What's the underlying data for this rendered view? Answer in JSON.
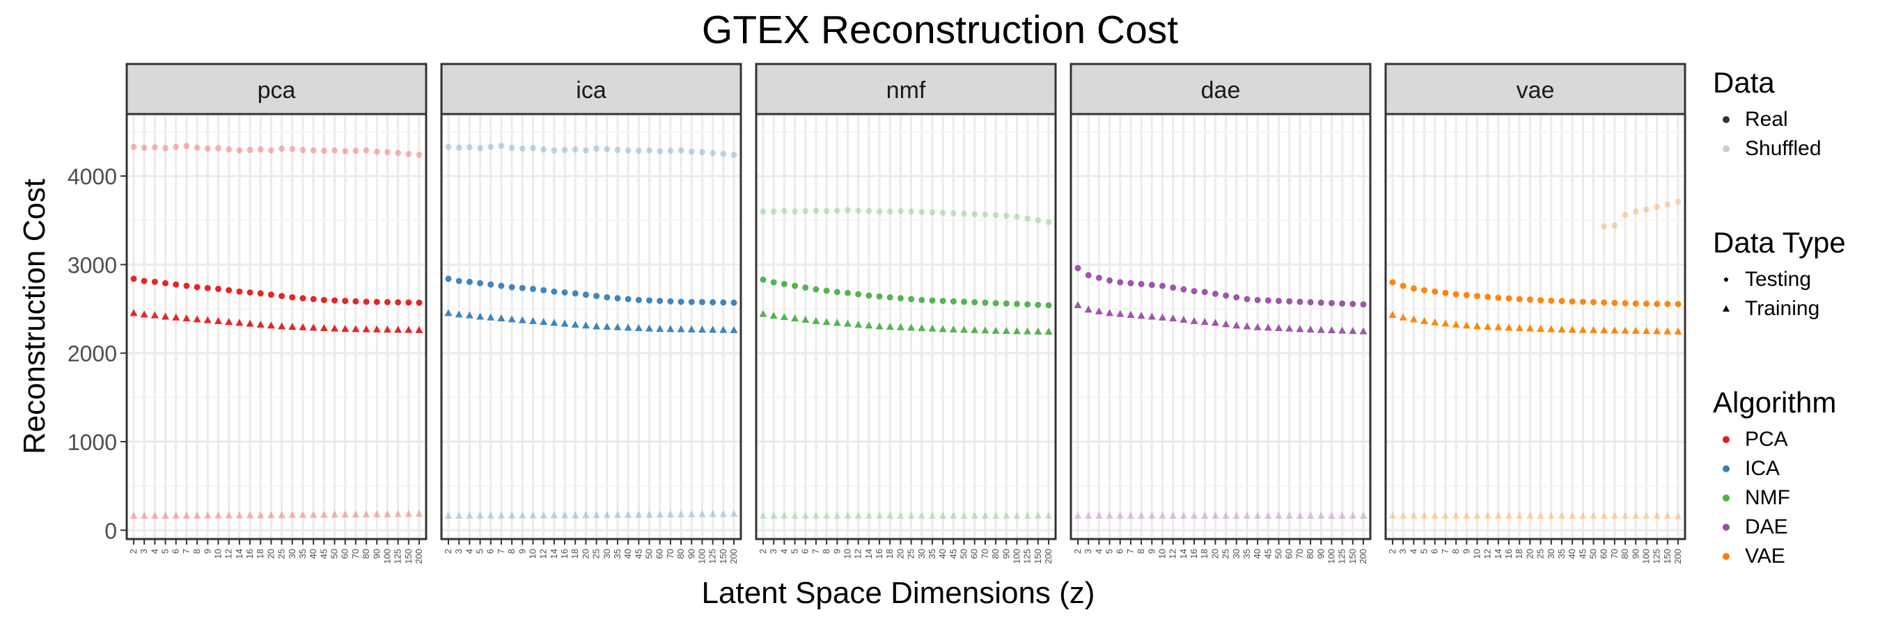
{
  "chart_data": {
    "type": "scatter",
    "title": "GTEX Reconstruction Cost",
    "xlabel": "Latent Space Dimensions (z)",
    "ylabel": "Reconstruction Cost",
    "ylim": [
      -100,
      4700
    ],
    "y_ticks": [
      0,
      1000,
      2000,
      3000,
      4000
    ],
    "x_categories": [
      "2",
      "3",
      "4",
      "5",
      "6",
      "7",
      "8",
      "9",
      "10",
      "12",
      "14",
      "16",
      "18",
      "20",
      "25",
      "30",
      "35",
      "40",
      "45",
      "50",
      "60",
      "70",
      "80",
      "90",
      "100",
      "125",
      "150",
      "200"
    ],
    "grid": true,
    "facets": [
      "pca",
      "ica",
      "nmf",
      "dae",
      "vae"
    ],
    "legend_position": "right",
    "legend": {
      "data": {
        "title": "Data",
        "items": [
          "Real",
          "Shuffled"
        ]
      },
      "data_type": {
        "title": "Data Type",
        "items": [
          "Testing",
          "Training"
        ]
      },
      "algorithm": {
        "title": "Algorithm",
        "items": [
          {
            "label": "PCA",
            "color": "#e41a1c"
          },
          {
            "label": "ICA",
            "color": "#377eb8"
          },
          {
            "label": "NMF",
            "color": "#4daf4a"
          },
          {
            "label": "DAE",
            "color": "#984ea3"
          },
          {
            "label": "VAE",
            "color": "#ff7f00"
          }
        ]
      }
    },
    "series": [
      {
        "facet": "pca",
        "data": "Real",
        "data_type": "Testing",
        "color": "#e41a1c",
        "values": [
          2840,
          2815,
          2805,
          2790,
          2775,
          2760,
          2745,
          2735,
          2725,
          2710,
          2695,
          2685,
          2675,
          2660,
          2645,
          2630,
          2620,
          2610,
          2600,
          2595,
          2590,
          2585,
          2580,
          2578,
          2576,
          2574,
          2572,
          2570
        ]
      },
      {
        "facet": "pca",
        "data": "Real",
        "data_type": "Training",
        "color": "#e41a1c",
        "values": [
          2450,
          2435,
          2425,
          2410,
          2400,
          2390,
          2380,
          2370,
          2360,
          2350,
          2340,
          2330,
          2320,
          2310,
          2300,
          2295,
          2290,
          2285,
          2280,
          2275,
          2272,
          2270,
          2268,
          2266,
          2264,
          2262,
          2260,
          2258
        ]
      },
      {
        "facet": "pca",
        "data": "Shuffled",
        "data_type": "Testing",
        "color": "#e41a1c",
        "values": [
          4330,
          4320,
          4325,
          4315,
          4330,
          4340,
          4320,
          4310,
          4315,
          4300,
          4290,
          4295,
          4300,
          4290,
          4310,
          4305,
          4295,
          4290,
          4285,
          4290,
          4280,
          4285,
          4290,
          4275,
          4270,
          4260,
          4250,
          4240
        ]
      },
      {
        "facet": "pca",
        "data": "Shuffled",
        "data_type": "Training",
        "color": "#e41a1c",
        "values": [
          160,
          160,
          160,
          161,
          161,
          162,
          162,
          163,
          163,
          164,
          165,
          166,
          166,
          167,
          168,
          169,
          170,
          171,
          172,
          173,
          174,
          175,
          176,
          177,
          178,
          179,
          180,
          182
        ]
      },
      {
        "facet": "ica",
        "data": "Real",
        "data_type": "Testing",
        "color": "#377eb8",
        "values": [
          2840,
          2815,
          2805,
          2790,
          2775,
          2760,
          2745,
          2735,
          2725,
          2710,
          2695,
          2685,
          2675,
          2660,
          2645,
          2630,
          2620,
          2610,
          2600,
          2595,
          2590,
          2585,
          2580,
          2578,
          2576,
          2574,
          2572,
          2570
        ]
      },
      {
        "facet": "ica",
        "data": "Real",
        "data_type": "Training",
        "color": "#377eb8",
        "values": [
          2450,
          2435,
          2425,
          2410,
          2400,
          2390,
          2380,
          2370,
          2360,
          2350,
          2340,
          2330,
          2320,
          2310,
          2300,
          2295,
          2290,
          2285,
          2280,
          2275,
          2272,
          2270,
          2268,
          2266,
          2264,
          2262,
          2260,
          2258
        ]
      },
      {
        "facet": "ica",
        "data": "Shuffled",
        "data_type": "Testing",
        "color": "#377eb8",
        "values": [
          4330,
          4320,
          4325,
          4315,
          4330,
          4340,
          4320,
          4310,
          4315,
          4300,
          4290,
          4295,
          4300,
          4290,
          4310,
          4305,
          4295,
          4290,
          4285,
          4290,
          4280,
          4285,
          4290,
          4275,
          4270,
          4260,
          4250,
          4240
        ]
      },
      {
        "facet": "ica",
        "data": "Shuffled",
        "data_type": "Training",
        "color": "#377eb8",
        "values": [
          160,
          160,
          160,
          161,
          161,
          162,
          162,
          163,
          163,
          164,
          165,
          166,
          166,
          167,
          168,
          169,
          170,
          171,
          172,
          173,
          174,
          175,
          176,
          177,
          178,
          179,
          180,
          182
        ]
      },
      {
        "facet": "nmf",
        "data": "Real",
        "data_type": "Testing",
        "color": "#4daf4a",
        "values": [
          2830,
          2800,
          2780,
          2760,
          2740,
          2720,
          2705,
          2690,
          2680,
          2665,
          2650,
          2640,
          2630,
          2620,
          2610,
          2600,
          2595,
          2590,
          2585,
          2580,
          2575,
          2570,
          2565,
          2560,
          2555,
          2550,
          2545,
          2540
        ]
      },
      {
        "facet": "nmf",
        "data": "Real",
        "data_type": "Training",
        "color": "#4daf4a",
        "values": [
          2440,
          2420,
          2405,
          2390,
          2375,
          2360,
          2350,
          2340,
          2330,
          2320,
          2310,
          2300,
          2295,
          2290,
          2285,
          2280,
          2275,
          2270,
          2266,
          2262,
          2258,
          2254,
          2250,
          2248,
          2246,
          2244,
          2242,
          2240
        ]
      },
      {
        "facet": "nmf",
        "data": "Shuffled",
        "data_type": "Testing",
        "color": "#4daf4a",
        "values": [
          3600,
          3600,
          3605,
          3600,
          3605,
          3610,
          3605,
          3610,
          3615,
          3610,
          3605,
          3600,
          3600,
          3605,
          3600,
          3595,
          3590,
          3585,
          3580,
          3575,
          3570,
          3565,
          3560,
          3550,
          3540,
          3520,
          3500,
          3480
        ]
      },
      {
        "facet": "nmf",
        "data": "Shuffled",
        "data_type": "Training",
        "color": "#4daf4a",
        "values": [
          160,
          160,
          160,
          160,
          160,
          160,
          160,
          160,
          160,
          160,
          160,
          160,
          160,
          160,
          160,
          160,
          160,
          160,
          160,
          160,
          160,
          160,
          160,
          160,
          160,
          160,
          160,
          160
        ]
      },
      {
        "facet": "dae",
        "data": "Real",
        "data_type": "Testing",
        "color": "#984ea3",
        "values": [
          2960,
          2880,
          2850,
          2820,
          2800,
          2790,
          2780,
          2770,
          2760,
          2740,
          2720,
          2700,
          2690,
          2670,
          2650,
          2630,
          2610,
          2600,
          2595,
          2590,
          2585,
          2580,
          2575,
          2570,
          2565,
          2560,
          2555,
          2550
        ]
      },
      {
        "facet": "dae",
        "data": "Real",
        "data_type": "Training",
        "color": "#984ea3",
        "values": [
          2540,
          2490,
          2470,
          2450,
          2440,
          2430,
          2420,
          2410,
          2400,
          2390,
          2375,
          2360,
          2350,
          2340,
          2325,
          2310,
          2300,
          2290,
          2285,
          2280,
          2275,
          2270,
          2265,
          2260,
          2256,
          2252,
          2248,
          2244
        ]
      },
      {
        "facet": "dae",
        "data": "Shuffled",
        "data_type": "Training",
        "color": "#984ea3",
        "values": [
          160,
          160,
          160,
          160,
          160,
          160,
          160,
          160,
          160,
          160,
          160,
          160,
          160,
          160,
          160,
          160,
          160,
          160,
          160,
          160,
          160,
          160,
          160,
          160,
          160,
          160,
          160,
          160
        ]
      },
      {
        "facet": "vae",
        "data": "Real",
        "data_type": "Testing",
        "color": "#ff7f00",
        "values": [
          2800,
          2760,
          2730,
          2710,
          2695,
          2680,
          2665,
          2655,
          2645,
          2635,
          2625,
          2618,
          2610,
          2604,
          2598,
          2592,
          2588,
          2584,
          2580,
          2576,
          2572,
          2568,
          2564,
          2560,
          2558,
          2556,
          2555,
          2554
        ]
      },
      {
        "facet": "vae",
        "data": "Real",
        "data_type": "Training",
        "color": "#ff7f00",
        "values": [
          2430,
          2400,
          2380,
          2360,
          2345,
          2332,
          2320,
          2310,
          2302,
          2295,
          2290,
          2285,
          2280,
          2276,
          2272,
          2268,
          2265,
          2262,
          2260,
          2258,
          2256,
          2254,
          2252,
          2250,
          2248,
          2246,
          2244,
          2242
        ]
      },
      {
        "facet": "vae",
        "data": "Shuffled",
        "data_type": "Testing",
        "color": "#ff7f00",
        "values": [
          null,
          null,
          null,
          null,
          null,
          null,
          null,
          null,
          null,
          null,
          null,
          null,
          null,
          null,
          null,
          null,
          null,
          null,
          null,
          null,
          3430,
          3440,
          3560,
          3600,
          3620,
          3650,
          3680,
          3710
        ]
      },
      {
        "facet": "vae",
        "data": "Shuffled",
        "data_type": "Training",
        "color": "#ff7f00",
        "values": [
          160,
          160,
          160,
          160,
          160,
          160,
          160,
          160,
          160,
          160,
          160,
          160,
          160,
          160,
          160,
          160,
          160,
          160,
          160,
          160,
          160,
          160,
          160,
          160,
          160,
          160,
          160,
          155
        ]
      }
    ]
  }
}
